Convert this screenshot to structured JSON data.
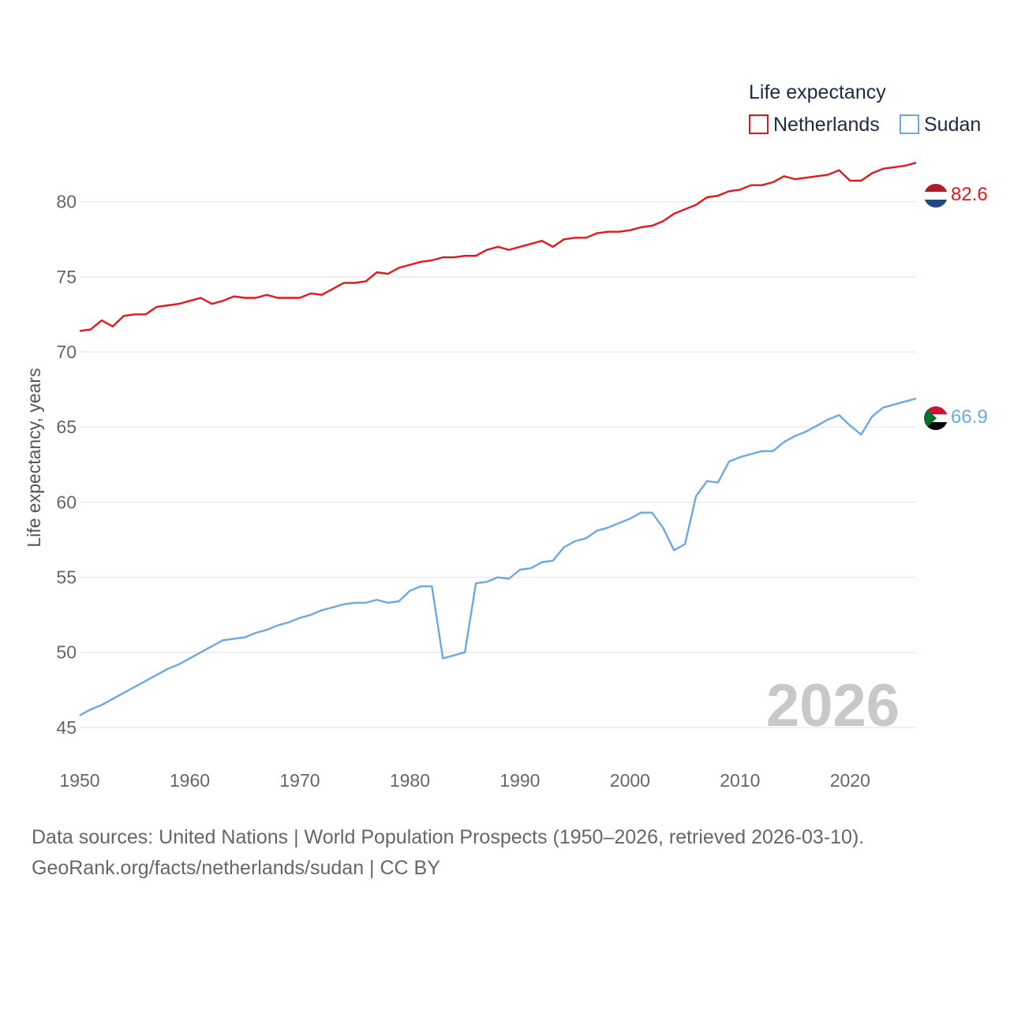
{
  "chart_data": {
    "type": "line",
    "legend_title": "Life expectancy",
    "ylabel": "Life expectancy, years",
    "xlim": [
      1950,
      2026
    ],
    "ylim": [
      43,
      84.5
    ],
    "x_ticks": [
      1950,
      1960,
      1970,
      1980,
      1990,
      2000,
      2010,
      2020
    ],
    "y_ticks": [
      45,
      50,
      55,
      60,
      65,
      70,
      75,
      80
    ],
    "current_year_label": "2026",
    "series": [
      {
        "name": "Netherlands",
        "color": "#e8161b",
        "end_value": 82.6,
        "end_label": "82.6",
        "flag": "netherlands-flag",
        "values": [
          71.4,
          71.5,
          72.1,
          71.7,
          72.4,
          72.5,
          72.5,
          73.0,
          73.1,
          73.2,
          73.4,
          73.6,
          73.2,
          73.4,
          73.7,
          73.6,
          73.6,
          73.8,
          73.6,
          73.6,
          73.6,
          73.9,
          73.8,
          74.2,
          74.6,
          74.6,
          74.7,
          75.3,
          75.2,
          75.6,
          75.8,
          76.0,
          76.1,
          76.3,
          76.3,
          76.4,
          76.4,
          76.8,
          77.0,
          76.8,
          77.0,
          77.2,
          77.4,
          77.0,
          77.5,
          77.6,
          77.6,
          77.9,
          78.0,
          78.0,
          78.1,
          78.3,
          78.4,
          78.7,
          79.2,
          79.5,
          79.8,
          80.3,
          80.4,
          80.7,
          80.8,
          81.1,
          81.1,
          81.3,
          81.7,
          81.5,
          81.6,
          81.7,
          81.8,
          82.1,
          81.4,
          81.4,
          81.9,
          82.2,
          82.3,
          82.4,
          82.6
        ]
      },
      {
        "name": "Sudan",
        "color": "#6aaae4",
        "end_value": 66.9,
        "end_label": "66.9",
        "flag": "sudan-flag",
        "values": [
          45.8,
          46.2,
          46.5,
          46.9,
          47.3,
          47.7,
          48.1,
          48.5,
          48.9,
          49.2,
          49.6,
          50.0,
          50.4,
          50.8,
          50.9,
          51.0,
          51.3,
          51.5,
          51.8,
          52.0,
          52.3,
          52.5,
          52.8,
          53.0,
          53.2,
          53.3,
          53.3,
          53.5,
          53.3,
          53.4,
          54.1,
          54.4,
          54.4,
          49.6,
          49.8,
          50.0,
          54.6,
          54.7,
          55.0,
          54.9,
          55.5,
          55.6,
          56.0,
          56.1,
          57.0,
          57.4,
          57.6,
          58.1,
          58.3,
          58.6,
          58.9,
          59.3,
          59.3,
          58.3,
          56.8,
          57.2,
          60.4,
          61.4,
          61.3,
          62.7,
          63.0,
          63.2,
          63.4,
          63.4,
          64.0,
          64.4,
          64.7,
          65.1,
          65.5,
          65.8,
          65.1,
          64.5,
          65.7,
          66.3,
          66.5,
          66.7,
          66.9
        ]
      }
    ]
  },
  "source": {
    "line1": "Data sources: United Nations | World Population Prospects (1950–2026, retrieved 2026-03-10).",
    "line2": "GeoRank.org/facts/netherlands/sudan | CC BY"
  }
}
